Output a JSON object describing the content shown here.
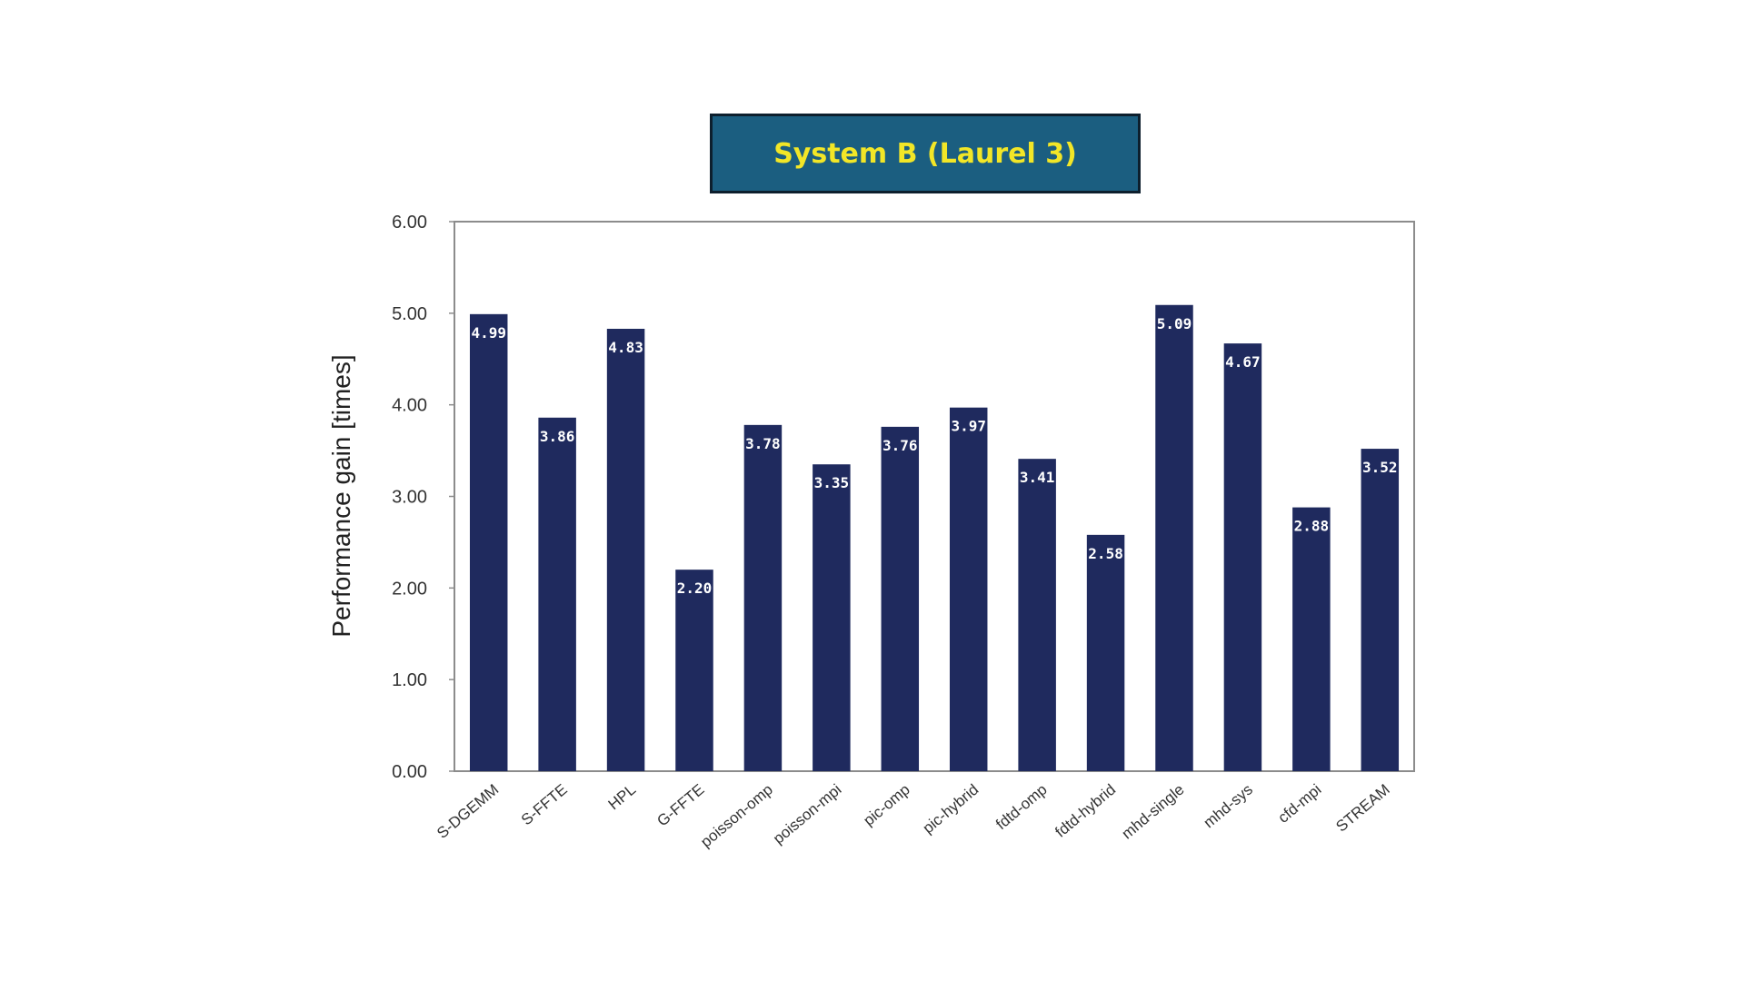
{
  "chart_data": {
    "type": "bar",
    "title": "System B (Laurel 3)",
    "ylabel": "Performance gain [times]",
    "xlabel": "",
    "ylim": [
      0,
      6
    ],
    "yticks": [
      "0.00",
      "1.00",
      "2.00",
      "3.00",
      "4.00",
      "5.00",
      "6.00"
    ],
    "grid": false,
    "categories": [
      "S-DGEMM",
      "S-FFTE",
      "HPL",
      "G-FFTE",
      "poisson-omp",
      "poisson-mpi",
      "pic-omp",
      "pic-hybrid",
      "fdtd-omp",
      "fdtd-hybrid",
      "mhd-single",
      "mhd-sys",
      "cfd-mpi",
      "STREAM"
    ],
    "values": [
      4.99,
      3.86,
      4.83,
      2.2,
      3.78,
      3.35,
      3.76,
      3.97,
      3.41,
      2.58,
      5.09,
      4.67,
      2.88,
      3.52
    ],
    "value_labels": [
      "4.99",
      "3.86",
      "4.83",
      "2.20",
      "3.78",
      "3.35",
      "3.76",
      "3.97",
      "3.41",
      "2.58",
      "5.09",
      "4.67",
      "2.88",
      "3.52"
    ],
    "bar_color": "#1f2a5e",
    "title_bg_color": "#1b5e80",
    "title_text_color": "#f2e627"
  }
}
